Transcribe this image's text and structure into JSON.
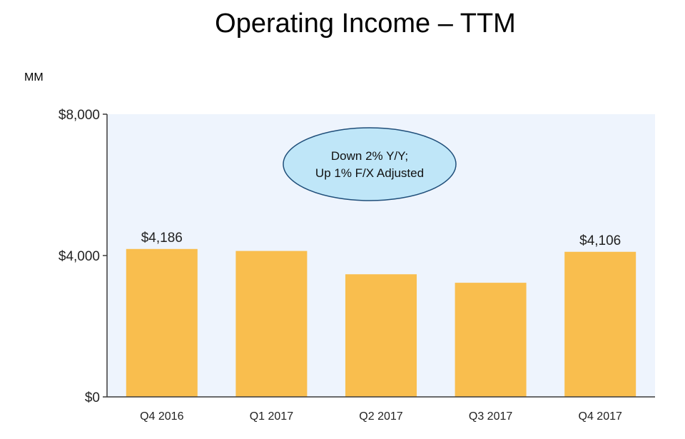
{
  "chart_data": {
    "type": "bar",
    "title": "Operating Income – TTM",
    "unit_label": "MM",
    "categories": [
      "Q4 2016",
      "Q1 2017",
      "Q2 2017",
      "Q3 2017",
      "Q4 2017"
    ],
    "values": [
      4186,
      4130,
      3470,
      3230,
      4106
    ],
    "data_labels": [
      "$4,186",
      "",
      "",
      "",
      "$4,106"
    ],
    "ylim": [
      0,
      8000
    ],
    "yticks": [
      {
        "value": 0,
        "label": "$0"
      },
      {
        "value": 4000,
        "label": "$4,000"
      },
      {
        "value": 8000,
        "label": "$8,000"
      }
    ],
    "annotation": [
      "Down 2% Y/Y;",
      "Up 1% F/X Adjusted"
    ],
    "grid": false,
    "colors": {
      "bar": "#F9BE4E",
      "plot_background": "#EEF4FD",
      "axis": "#3a3a3a",
      "annotation_fill": "#BFE6F8",
      "annotation_stroke": "#1F4E79"
    }
  }
}
